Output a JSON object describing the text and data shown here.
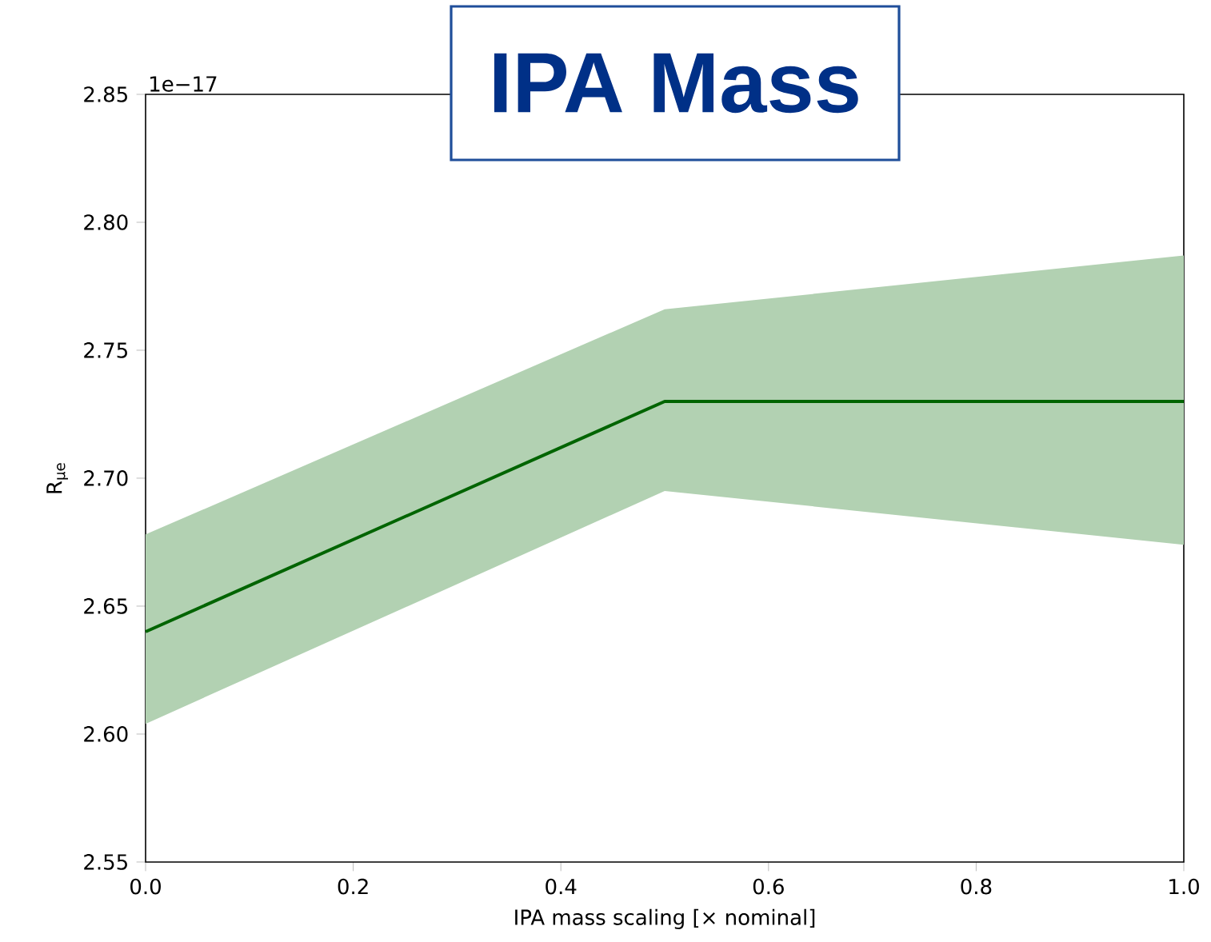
{
  "chart_data": {
    "type": "line",
    "title": "IPA Mass",
    "xlabel": "IPA mass scaling [× nominal]",
    "ylabel": "R$_{μe}$",
    "annotations": [
      "1e−17"
    ],
    "xlim": [
      0,
      1
    ],
    "ylim": [
      2.55,
      2.85
    ],
    "xticks": [
      {
        "value": 0,
        "label": "0.0"
      },
      {
        "value": 0.2,
        "label": "0.2"
      },
      {
        "value": 0.4,
        "label": "0.4"
      },
      {
        "value": 0.6,
        "label": "0.6"
      },
      {
        "value": 0.8,
        "label": "0.8"
      },
      {
        "value": 1,
        "label": "1.0"
      }
    ],
    "yticks": [
      {
        "value": 2.55,
        "label": "2.55"
      },
      {
        "value": 2.6,
        "label": "2.60"
      },
      {
        "value": 2.65,
        "label": "2.65"
      },
      {
        "value": 2.7,
        "label": "2.70"
      },
      {
        "value": 2.75,
        "label": "2.75"
      },
      {
        "value": 2.8,
        "label": "2.80"
      },
      {
        "value": 2.85,
        "label": "2.85"
      }
    ],
    "series": [
      {
        "color": "#006400",
        "x": [
          0,
          0.5,
          1
        ],
        "values": [
          2.64,
          2.73,
          2.73
        ],
        "lower": [
          2.604,
          2.695,
          2.674
        ],
        "upper": [
          2.678,
          2.766,
          2.787
        ]
      }
    ]
  }
}
